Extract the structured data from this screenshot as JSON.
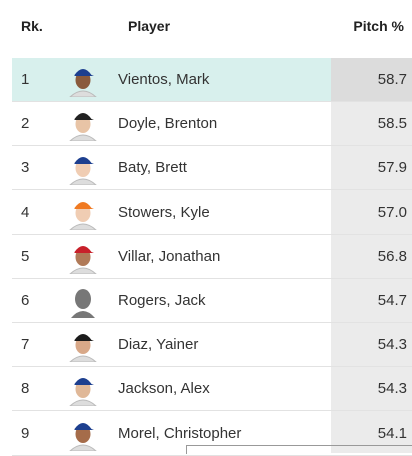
{
  "header": {
    "rank": "Rk.",
    "player": "Player",
    "stat": "Pitch %"
  },
  "table": {
    "rows": [
      [
        "1",
        "Vientos, Mark",
        "58.7"
      ],
      [
        "2",
        "Doyle, Brenton",
        "58.5"
      ],
      [
        "3",
        "Baty, Brett",
        "57.9"
      ],
      [
        "4",
        "Stowers, Kyle",
        "57.0"
      ],
      [
        "5",
        "Villar, Jonathan",
        "56.8"
      ],
      [
        "6",
        "Rogers, Jack",
        "54.7"
      ],
      [
        "7",
        "Diaz, Yainer",
        "54.3"
      ],
      [
        "8",
        "Jackson, Alex",
        "54.3"
      ],
      [
        "9",
        "Morel, Christopher",
        "54.1"
      ]
    ]
  }
}
